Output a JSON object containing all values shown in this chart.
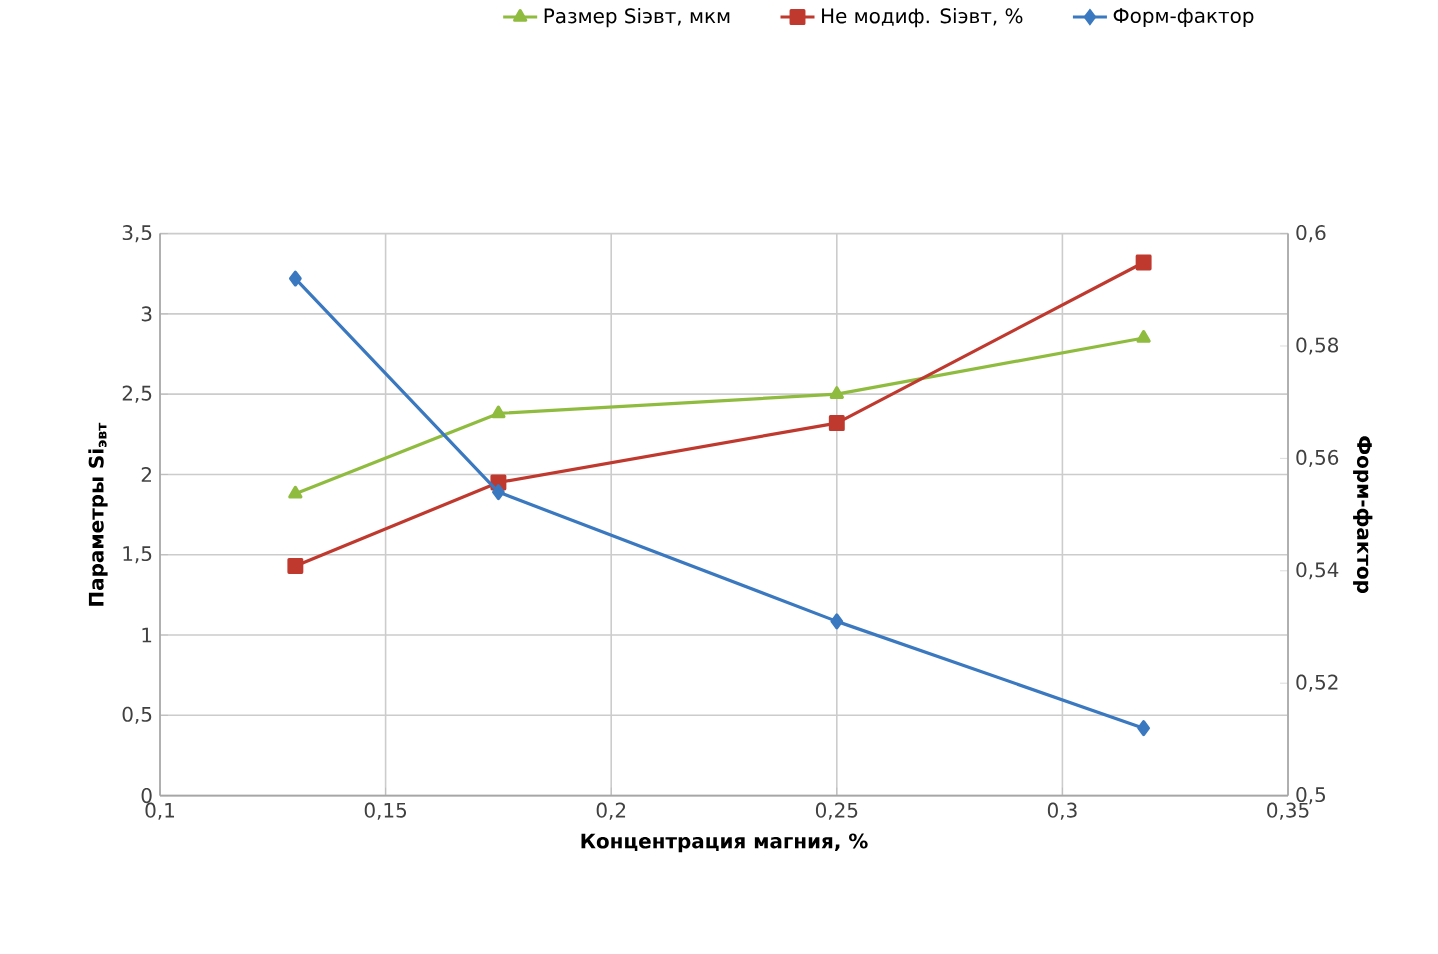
{
  "chart_data": {
    "type": "line",
    "xlabel": "Концентрация магния, %",
    "ylabel": "Параметры Si$_{эвт}$",
    "y2label": "Форм-фактор",
    "legend": "top",
    "grid": true,
    "line_style": "solid",
    "x": [
      0.13,
      0.175,
      0.25,
      0.318
    ],
    "series": [
      {
        "name": "Размер Siэвт, мкм",
        "color": "#8fbc3f",
        "marker": "triangle",
        "values": [
          1.88,
          2.38,
          2.5,
          2.85
        ]
      },
      {
        "name": "Не модиф. Siэвт, %",
        "color": "#c0392f",
        "marker": "square",
        "values": [
          1.43,
          1.95,
          2.32,
          3.32
        ]
      },
      {
        "name": "Форм-фактор",
        "color": "#3a78c0",
        "marker": "diamond",
        "axis": "y2",
        "values": [
          0.592,
          0.554,
          0.531,
          0.512
        ]
      }
    ],
    "xlim": [
      0.1,
      0.35
    ],
    "xticks": [
      {
        "value": 0.1,
        "label": "0,1"
      },
      {
        "value": 0.15,
        "label": "0,15"
      },
      {
        "value": 0.2,
        "label": "0,2"
      },
      {
        "value": 0.25,
        "label": "0,25"
      },
      {
        "value": 0.3,
        "label": "0,3"
      },
      {
        "value": 0.35,
        "label": "0,35"
      }
    ],
    "ylim": [
      0,
      3.5
    ],
    "yticks": [
      0,
      {
        "value": 0.5,
        "label": "0,5"
      },
      1,
      {
        "value": 1.5,
        "label": "1,5"
      },
      2,
      {
        "value": 2.5,
        "label": "2,5"
      },
      3,
      {
        "value": 3.5,
        "label": "3,5"
      }
    ],
    "y2lim": [
      0.5,
      0.6
    ],
    "y2ticks": [
      {
        "value": 0.5,
        "label": "0,5"
      },
      {
        "value": 0.52,
        "label": "0,52"
      },
      {
        "value": 0.54,
        "label": "0,54"
      },
      {
        "value": 0.56,
        "label": "0,56"
      },
      {
        "value": 0.58,
        "label": "0,58"
      },
      {
        "value": 0.6,
        "label": "0,6"
      }
    ]
  }
}
